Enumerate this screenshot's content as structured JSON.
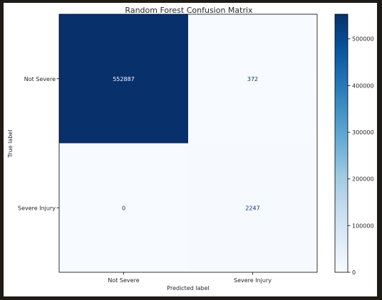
{
  "chart_data": {
    "type": "heatmap",
    "title": "Random Forest Confusion Matrix",
    "xlabel": "Predicted label",
    "ylabel": "True label",
    "x_categories": [
      "Not Severe",
      "Severe Injury"
    ],
    "y_categories": [
      "Not Severe",
      "Severe Injury"
    ],
    "matrix": [
      [
        552887,
        372
      ],
      [
        0,
        2247
      ]
    ],
    "cell_labels": [
      [
        "552887",
        "372"
      ],
      [
        "0",
        "2247"
      ]
    ],
    "colormap": "Blues",
    "colorbar": {
      "min": 0,
      "max": 552887,
      "ticks": [
        0,
        100000,
        200000,
        300000,
        400000,
        500000
      ],
      "tick_labels": [
        "0",
        "100000",
        "200000",
        "300000",
        "400000",
        "500000"
      ]
    },
    "colors": {
      "low": "#f7fbff",
      "high": "#08306b",
      "text_on_dark": "#f7fbff",
      "text_on_light": "#08306b"
    }
  }
}
